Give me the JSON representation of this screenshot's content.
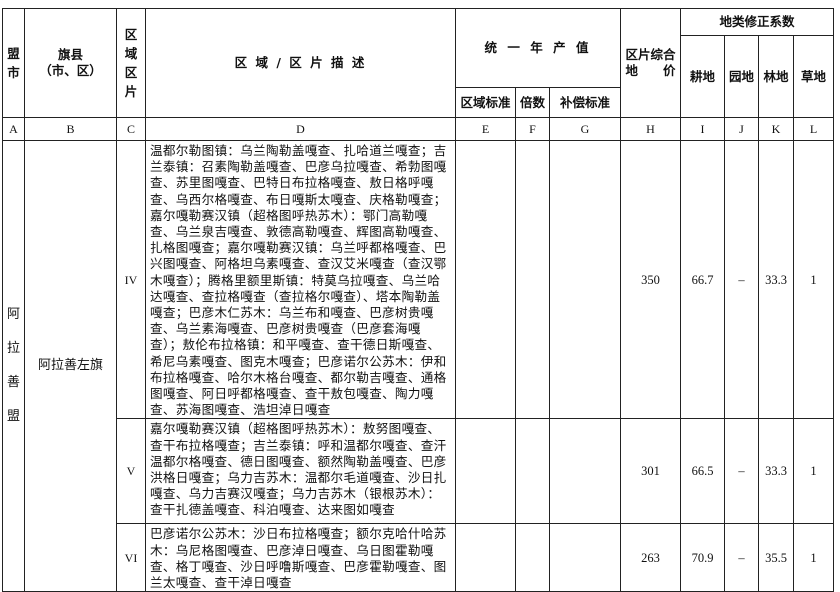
{
  "header": {
    "league_city": "盟市",
    "banner_county": "旗县",
    "banner_county_sub": "（市、区）",
    "zone": "区域区片",
    "description": "区 域 / 区 片 描 述",
    "annual_output": "统 一 年 产 值",
    "regional_standard": "区域标准",
    "multiple": "倍数",
    "compensation_standard": "补偿标准",
    "composite_price_1": "区片综合",
    "composite_price_2": "地　　价",
    "correction": "地类修正系数",
    "cultivated": "耕地",
    "garden": "园地",
    "forest": "林地",
    "grass": "草地"
  },
  "letters": [
    "A",
    "B",
    "C",
    "D",
    "E",
    "F",
    "G",
    "H",
    "I",
    "J",
    "K",
    "L"
  ],
  "league": "阿拉善盟",
  "county": "阿拉善左旗",
  "rows": [
    {
      "zone": "IV",
      "description": "温都尔勒图镇：乌兰陶勒盖嘎查、扎哈道兰嘎查；吉兰泰镇：召素陶勒盖嘎查、巴彦乌拉嘎查、希勃图嘎查、苏里图嘎查、巴特日布拉格嘎查、敖日格呼嘎查、乌西尔格嘎查、布日嘎斯太嘎查、庆格勒嘎查；嘉尔嘎勒赛汉镇（超格图呼热苏木）：鄂门高勒嘎查、乌兰泉吉嘎查、敦德高勒嘎查、辉图高勒嘎查、扎格图嘎查；嘉尔嘎勒赛汉镇：乌兰呼都格嘎查、巴兴图嘎查、阿格坦乌素嘎查、查汉艾米嘎查（查汉鄂木嘎查）；腾格里额里斯镇：特莫乌拉嘎查、乌兰哈达嘎查、查拉格嘎查（查拉格尔嘎查）、塔本陶勒盖嘎查；巴彦木仁苏木：乌兰布和嘎查、巴彦树贵嘎查、乌兰素海嘎查、巴彦树贵嘎查（巴彦套海嘎查）；敖伦布拉格镇：和平嘎查、查干德日斯嘎查、希尼乌素嘎查、图克木嘎查；巴彦诺尔公苏木：伊和布拉格嘎查、哈尔木格台嘎查、都尔勒吉嘎查、通格图嘎查、阿日呼都格嘎查、查干敖包嘎查、陶力嘎查、苏海图嘎查、浩坦淖日嘎查",
      "regional_standard": "",
      "multiple": "",
      "compensation_standard": "",
      "price": "350",
      "cultivated": "66.7",
      "garden": "–",
      "forest": "33.3",
      "grass": "1"
    },
    {
      "zone": "V",
      "description": "嘉尔嘎勒赛汉镇（超格图呼热苏木）：敖努图嘎查、查干布拉格嘎查；吉兰泰镇：呼和温都尔嘎查、查汗温都尔格嘎查、德日图嘎查、额然陶勒盖嘎查、巴彦洪格日嘎查；乌力吉苏木：温都尔毛道嘎查、沙日扎嘎查、乌力吉赛汉嘎查；乌力吉苏木（银根苏木）：查干扎德盖嘎查、科泊嘎查、达来图如嘎查",
      "regional_standard": "",
      "multiple": "",
      "compensation_standard": "",
      "price": "301",
      "cultivated": "66.5",
      "garden": "–",
      "forest": "33.3",
      "grass": "1"
    },
    {
      "zone": "VI",
      "description": "巴彦诺尔公苏木：沙日布拉格嘎查；额尔克哈什哈苏木：乌尼格图嘎查、巴彦淖日嘎查、乌日图霍勒嘎查、格丁嘎查、沙日呼噜斯嘎查、巴彦霍勒嘎查、图兰太嘎查、查干淖日嘎查",
      "regional_standard": "",
      "multiple": "",
      "compensation_standard": "",
      "price": "263",
      "cultivated": "70.9",
      "garden": "–",
      "forest": "35.5",
      "grass": "1"
    }
  ]
}
